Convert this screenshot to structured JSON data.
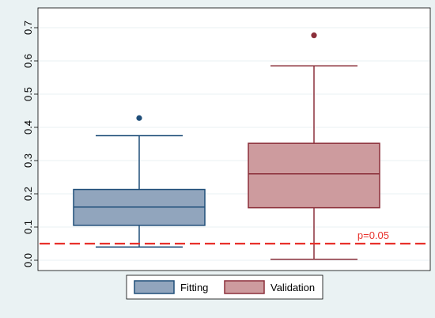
{
  "chart_data": {
    "type": "box",
    "ylim": [
      0,
      0.7
    ],
    "yticks": [
      "0.0",
      "0.1",
      "0.2",
      "0.3",
      "0.4",
      "0.5",
      "0.6",
      "0.7"
    ],
    "grid": true,
    "legend_placement": "bottom",
    "series": [
      {
        "name": "Fitting",
        "whisker_low": 0.04,
        "q1": 0.105,
        "median": 0.16,
        "q3": 0.213,
        "whisker_high": 0.375,
        "outliers": [
          0.428
        ],
        "fill": "#91a5bd",
        "stroke": "#1f4e79"
      },
      {
        "name": "Validation",
        "whisker_low": 0.003,
        "q1": 0.158,
        "median": 0.26,
        "q3": 0.352,
        "whisker_high": 0.585,
        "outliers": [
          0.677
        ],
        "fill": "#cd9b9e",
        "stroke": "#8b2f3a"
      }
    ],
    "reference_line": {
      "y": 0.05,
      "label": "p=0.05",
      "color": "#e8312b"
    }
  },
  "colors": {
    "outer_background": "#eaf2f3",
    "plot_background": "#ffffff",
    "grid": "#eaf2f3"
  }
}
